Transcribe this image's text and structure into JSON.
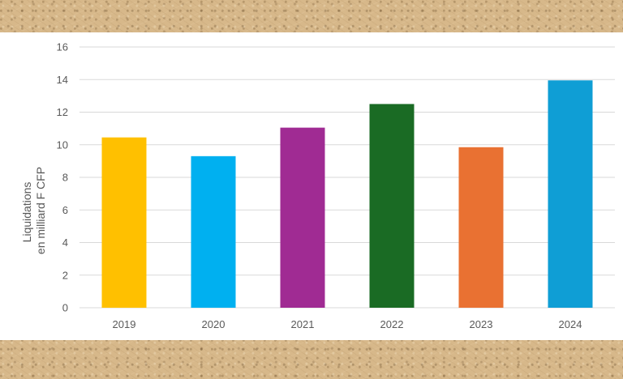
{
  "chart_data": {
    "type": "bar",
    "title": "",
    "xlabel": "",
    "ylabel_lines": [
      "Liquidations",
      "en milliard F CFP"
    ],
    "categories": [
      "2019",
      "2020",
      "2021",
      "2022",
      "2023",
      "2024"
    ],
    "values": [
      10.45,
      9.3,
      11.05,
      12.5,
      9.85,
      13.95
    ],
    "colors": [
      "#ffc000",
      "#00b0f0",
      "#a02b93",
      "#1a6b24",
      "#e97132",
      "#0f9ed5"
    ],
    "ylim": [
      0,
      16
    ],
    "yticks": [
      "0",
      "2",
      "4",
      "6",
      "8",
      "10",
      "12",
      "14",
      "16"
    ],
    "grid": true,
    "legend": "none"
  }
}
